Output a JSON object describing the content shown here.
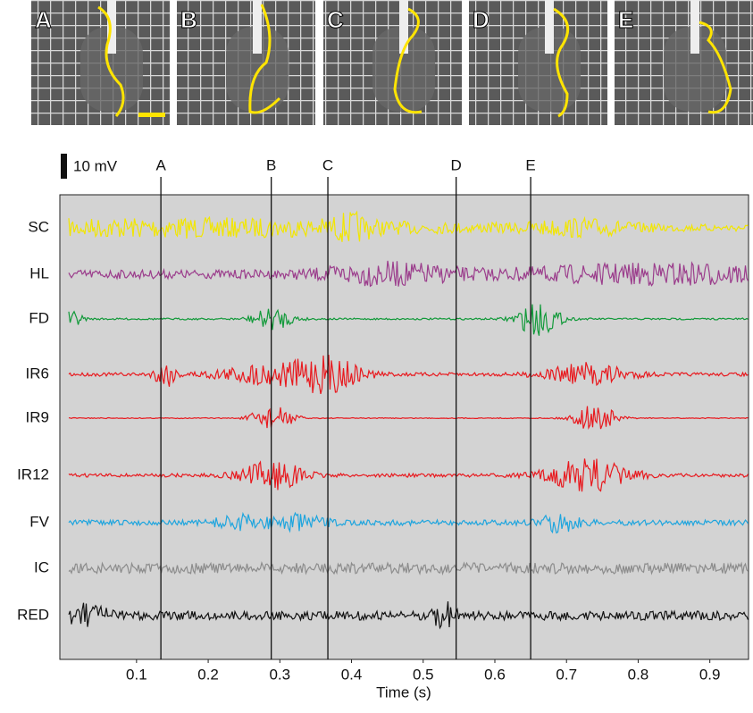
{
  "photos": {
    "labels": [
      "A",
      "B",
      "C",
      "D",
      "E"
    ]
  },
  "chart_data": {
    "type": "line",
    "xlabel": "Time (s)",
    "scale_bar_label": "10 mV",
    "xlim": [
      -0.007,
      0.954
    ],
    "xticks": [
      0.1,
      0.2,
      0.3,
      0.4,
      0.5,
      0.6,
      0.7,
      0.8,
      0.9
    ],
    "events": [
      {
        "label": "A",
        "x": 0.134
      },
      {
        "label": "B",
        "x": 0.288
      },
      {
        "label": "C",
        "x": 0.367
      },
      {
        "label": "D",
        "x": 0.546
      },
      {
        "label": "E",
        "x": 0.65
      }
    ],
    "series": [
      {
        "name": "SC",
        "color": "#f2e600"
      },
      {
        "name": "HL",
        "color": "#9b3d8c"
      },
      {
        "name": "FD",
        "color": "#129a3a"
      },
      {
        "name": "IR6",
        "color": "#e8191e"
      },
      {
        "name": "IR9",
        "color": "#e8191e"
      },
      {
        "name": "IR12",
        "color": "#e8191e"
      },
      {
        "name": "FV",
        "color": "#1ea5de"
      },
      {
        "name": "IC",
        "color": "#8c8c8c"
      },
      {
        "name": "RED",
        "color": "#111111"
      }
    ]
  }
}
